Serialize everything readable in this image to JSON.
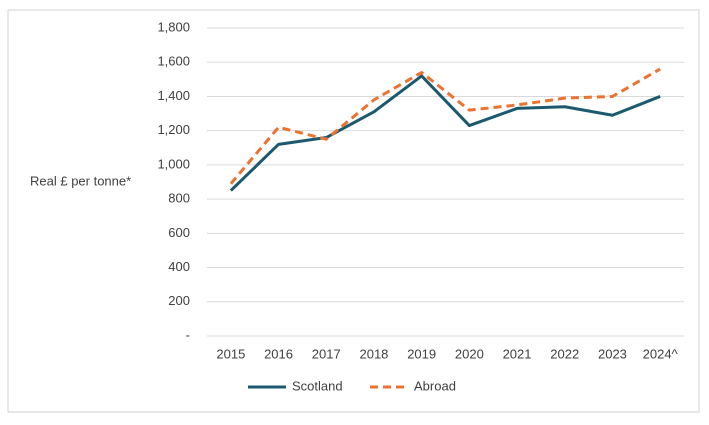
{
  "chart_data": {
    "type": "line",
    "y_axis_label": "Real £ per tonne*",
    "categories": [
      "2015",
      "2016",
      "2017",
      "2018",
      "2019",
      "2020",
      "2021",
      "2022",
      "2023",
      "2024^"
    ],
    "series": [
      {
        "name": "Scotland",
        "color": "#1b5a6e",
        "dashed": false,
        "values": [
          850,
          1120,
          1160,
          1310,
          1520,
          1230,
          1330,
          1340,
          1290,
          1400
        ]
      },
      {
        "name": "Abroad",
        "color": "#ec7230",
        "dashed": true,
        "values": [
          890,
          1220,
          1150,
          1380,
          1540,
          1320,
          1350,
          1390,
          1400,
          1560
        ]
      }
    ],
    "ylim": [
      0,
      1800
    ],
    "yticks": [
      {
        "value": 0,
        "label": "-"
      },
      200,
      400,
      600,
      800,
      {
        "value": 1000,
        "label": "1,000"
      },
      {
        "value": 1200,
        "label": "1,200"
      },
      {
        "value": 1400,
        "label": "1,400"
      },
      {
        "value": 1600,
        "label": "1,600"
      },
      {
        "value": 1800,
        "label": "1,800"
      }
    ],
    "grid": true,
    "legend": "bottom"
  }
}
